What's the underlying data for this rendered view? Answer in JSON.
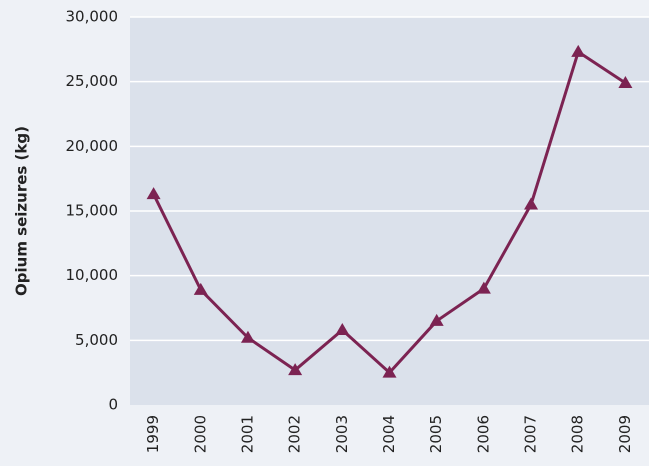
{
  "chart_data": {
    "type": "line",
    "y_label": "Opium seizures (kg)",
    "categories": [
      "1999",
      "2000",
      "2001",
      "2002",
      "2003",
      "2004",
      "2005",
      "2006",
      "2007",
      "2008",
      "2009"
    ],
    "series": [
      {
        "color": "#7c2352",
        "values": [
          16300,
          8900,
          5200,
          2700,
          5800,
          2500,
          6500,
          9000,
          15500,
          27300,
          24900
        ]
      }
    ],
    "ylim": [
      0,
      30000
    ],
    "yticks": [
      0,
      {
        "value": 5000,
        "label": "5,000"
      },
      {
        "value": 10000,
        "label": "10,000"
      },
      {
        "value": 15000,
        "label": "15,000"
      },
      {
        "value": 20000,
        "label": "20,000"
      },
      {
        "value": 25000,
        "label": "25,000"
      },
      {
        "value": 30000,
        "label": "30,000"
      }
    ],
    "grid": true,
    "marker": "triangle"
  }
}
